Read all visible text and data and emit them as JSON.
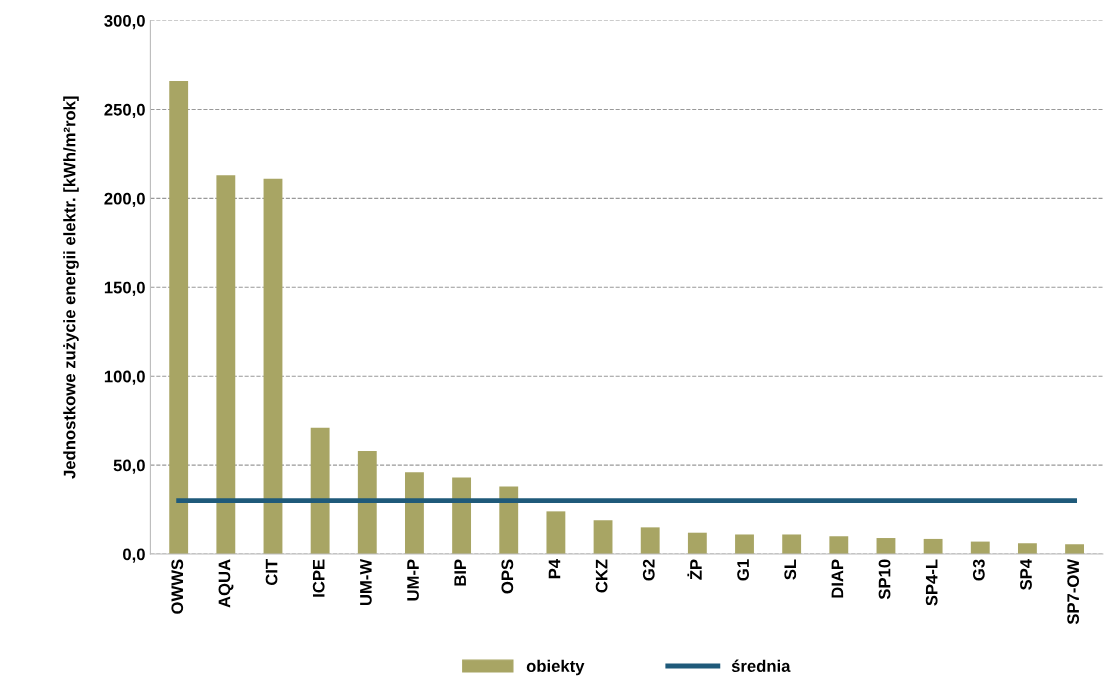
{
  "chart_data": {
    "type": "bar",
    "ylabel": "Jednostkowe zużycie energii elektr. [kWh/m²rok]",
    "categories": [
      "OWWS",
      "AQUA",
      "CIT",
      "ICPE",
      "UM-W",
      "UM-P",
      "BIP",
      "OPS",
      "P4",
      "CKZ",
      "G2",
      "ŻP",
      "G1",
      "SL",
      "DIAP",
      "SP10",
      "SP4-L",
      "G3",
      "SP4",
      "SP7-OW"
    ],
    "series": [
      {
        "name": "obiekty",
        "color": "#a8a564",
        "values": [
          266,
          213,
          211,
          71,
          58,
          46,
          43,
          38,
          24,
          19,
          15,
          12,
          11,
          11,
          10,
          9,
          8.5,
          7,
          6,
          5.5
        ]
      },
      {
        "name": "średnia",
        "type": "line",
        "color": "#1f5a7a",
        "values": [
          30,
          30,
          30,
          30,
          30,
          30,
          30,
          30,
          30,
          30,
          30,
          30,
          30,
          30,
          30,
          30,
          30,
          30,
          30,
          30
        ]
      }
    ],
    "ylim": [
      0,
      300
    ],
    "yticks": [
      {
        "value": 0,
        "label": "0,0"
      },
      {
        "value": 50,
        "label": "50,0"
      },
      {
        "value": 100,
        "label": "100,0"
      },
      {
        "value": 150,
        "label": "150,0"
      },
      {
        "value": 200,
        "label": "200,0"
      },
      {
        "value": 250,
        "label": "250,0"
      },
      {
        "value": 300,
        "label": "300,0"
      }
    ],
    "grid": "y",
    "legend": "bottom",
    "marker": "none",
    "line_style": "solid"
  }
}
